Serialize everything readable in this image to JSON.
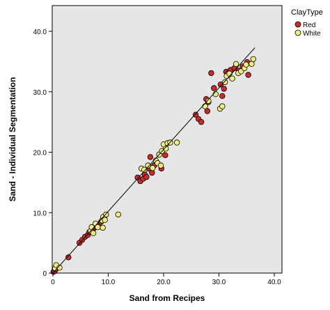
{
  "chart_data": {
    "type": "scatter",
    "xlabel": "Sand from Recipes",
    "ylabel": "Sand - Individual Segmentation",
    "xlim": [
      0,
      40
    ],
    "ylim": [
      0,
      40
    ],
    "x_ticks": [
      "0",
      "10.0",
      "20.0",
      "30.0",
      "40.0"
    ],
    "y_ticks": [
      "0",
      "10.0",
      "20.0",
      "30.0",
      "40.0"
    ],
    "grid": false,
    "background": "#e6e6e6",
    "legend": {
      "title": "ClayType",
      "placement": "right-top",
      "entries": [
        "Red",
        "White"
      ]
    },
    "fit_line": {
      "x": [
        0,
        36.5
      ],
      "y": [
        0,
        37.3
      ]
    },
    "colors": {
      "Red": "#cc2a2a",
      "White": "#f2ee7c"
    },
    "series": [
      {
        "name": "Red",
        "points": [
          [
            0.1,
            0.2
          ],
          [
            0.3,
            0.3
          ],
          [
            0.5,
            0.6
          ],
          [
            2.8,
            2.6
          ],
          [
            4.8,
            5.0
          ],
          [
            5.3,
            5.5
          ],
          [
            5.8,
            6.0
          ],
          [
            6.3,
            6.3
          ],
          [
            6.6,
            6.8
          ],
          [
            7.2,
            7.1
          ],
          [
            7.5,
            7.5
          ],
          [
            7.9,
            7.7
          ],
          [
            8.3,
            8.0
          ],
          [
            8.7,
            8.5
          ],
          [
            9.3,
            9.0
          ],
          [
            15.3,
            15.8
          ],
          [
            15.8,
            15.2
          ],
          [
            16.3,
            15.6
          ],
          [
            16.6,
            16.3
          ],
          [
            16.9,
            15.9
          ],
          [
            17.3,
            17.3
          ],
          [
            17.9,
            16.6
          ],
          [
            17.6,
            19.2
          ],
          [
            18.3,
            17.8
          ],
          [
            19.6,
            17.3
          ],
          [
            20.3,
            19.5
          ],
          [
            25.8,
            26.2
          ],
          [
            26.3,
            25.5
          ],
          [
            26.8,
            25.0
          ],
          [
            27.7,
            28.8
          ],
          [
            28.1,
            28.3
          ],
          [
            27.9,
            26.8
          ],
          [
            28.6,
            33.1
          ],
          [
            29.1,
            30.6
          ],
          [
            30.3,
            31.2
          ],
          [
            30.6,
            29.3
          ],
          [
            30.9,
            30.5
          ],
          [
            31.3,
            33.3
          ],
          [
            31.6,
            33.0
          ],
          [
            32.1,
            33.6
          ],
          [
            32.8,
            33.9
          ],
          [
            33.6,
            33.5
          ],
          [
            34.3,
            34.2
          ],
          [
            35.1,
            34.9
          ],
          [
            35.3,
            32.8
          ]
        ]
      },
      {
        "name": "White",
        "points": [
          [
            0.4,
            0.8
          ],
          [
            0.6,
            1.3
          ],
          [
            1.2,
            0.9
          ],
          [
            6.8,
            7.0
          ],
          [
            7.0,
            7.6
          ],
          [
            7.3,
            6.6
          ],
          [
            7.7,
            8.2
          ],
          [
            8.1,
            7.6
          ],
          [
            8.9,
            8.7
          ],
          [
            9.1,
            9.3
          ],
          [
            9.4,
            8.8
          ],
          [
            9.6,
            9.7
          ],
          [
            9.0,
            7.5
          ],
          [
            11.8,
            9.7
          ],
          [
            16.0,
            17.3
          ],
          [
            16.5,
            17.1
          ],
          [
            17.2,
            17.8
          ],
          [
            18.0,
            17.4
          ],
          [
            18.6,
            18.6
          ],
          [
            18.9,
            18.2
          ],
          [
            19.2,
            19.6
          ],
          [
            19.7,
            20.2
          ],
          [
            20.0,
            21.3
          ],
          [
            20.4,
            20.6
          ],
          [
            20.7,
            21.5
          ],
          [
            21.2,
            21.6
          ],
          [
            22.4,
            21.6
          ],
          [
            19.5,
            17.8
          ],
          [
            27.5,
            27.6
          ],
          [
            28.1,
            28.5
          ],
          [
            29.4,
            29.6
          ],
          [
            30.2,
            27.2
          ],
          [
            30.6,
            27.6
          ],
          [
            31.1,
            31.6
          ],
          [
            31.4,
            32.6
          ],
          [
            31.9,
            33.0
          ],
          [
            32.4,
            32.2
          ],
          [
            33.1,
            34.6
          ],
          [
            33.5,
            33.1
          ],
          [
            34.0,
            33.4
          ],
          [
            34.6,
            33.9
          ],
          [
            34.9,
            34.5
          ],
          [
            35.9,
            34.6
          ],
          [
            36.2,
            35.4
          ]
        ]
      }
    ]
  }
}
